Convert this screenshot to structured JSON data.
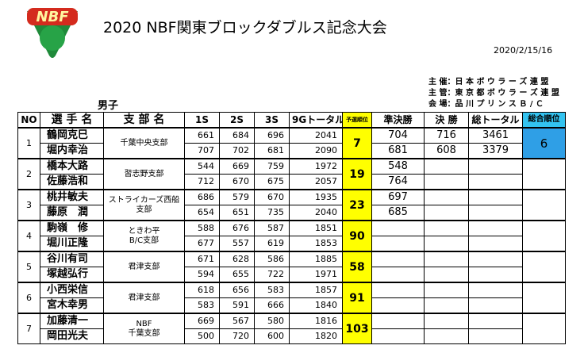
{
  "header": {
    "logo": "NBF",
    "title": "2020 NBF関東ブロックダブルス記念大会",
    "date": "2020/2/15/16",
    "info": [
      "主 催：日 本 ボ ウ ラ ー ズ 連 盟",
      "主 管：東 京 都 ボ ウ ラ ー ズ 連 盟",
      "会 場：品 川 プ リ ン ス Ｂ / Ｃ"
    ],
    "section": "男子"
  },
  "table": {
    "headers": [
      "NO",
      "選 手 名",
      "支 部 名",
      "1S",
      "2S",
      "3S",
      "9Gトータル",
      "予選順位",
      "準決勝",
      "決 勝",
      "総トータル",
      "総合順位"
    ],
    "teams": [
      {
        "no": 1,
        "branch": [
          "千葉中央支部"
        ],
        "qualify_rank": 7,
        "overall_rank": 6,
        "players": [
          {
            "name": "鶴岡克巳",
            "s1": 661,
            "s2": 684,
            "s3": 696,
            "total": 2041,
            "semi": 704,
            "final": 716,
            "grand_total": 3461
          },
          {
            "name": "堀内幸治",
            "s1": 707,
            "s2": 702,
            "s3": 681,
            "total": 2090,
            "semi": 681,
            "final": 608,
            "grand_total": 3379
          }
        ]
      },
      {
        "no": 2,
        "branch": [
          "習志野支部"
        ],
        "qualify_rank": 19,
        "players": [
          {
            "name": "橋本大路",
            "s1": 544,
            "s2": 669,
            "s3": 759,
            "total": 1972,
            "semi": 548
          },
          {
            "name": "佐藤浩和",
            "s1": 712,
            "s2": 670,
            "s3": 675,
            "total": 2057,
            "semi": 764
          }
        ]
      },
      {
        "no": 3,
        "branch": [
          "ストライカーズ西船",
          "支部"
        ],
        "qualify_rank": 23,
        "players": [
          {
            "name": "桃井敏夫",
            "s1": 686,
            "s2": 579,
            "s3": 670,
            "total": 1935,
            "semi": 697
          },
          {
            "name": "藤原　潤",
            "s1": 654,
            "s2": 651,
            "s3": 735,
            "total": 2040,
            "semi": 685
          }
        ]
      },
      {
        "no": 4,
        "branch": [
          "ときわ平",
          "B/C支部"
        ],
        "qualify_rank": 90,
        "players": [
          {
            "name": "駒嶺　修",
            "s1": 588,
            "s2": 676,
            "s3": 587,
            "total": 1851
          },
          {
            "name": "堀川正隆",
            "s1": 677,
            "s2": 557,
            "s3": 619,
            "total": 1853
          }
        ]
      },
      {
        "no": 5,
        "branch": [
          "君津支部"
        ],
        "qualify_rank": 58,
        "players": [
          {
            "name": "谷川有司",
            "s1": 671,
            "s2": 628,
            "s3": 586,
            "total": 1885
          },
          {
            "name": "塚越弘行",
            "s1": 594,
            "s2": 655,
            "s3": 722,
            "total": 1971
          }
        ]
      },
      {
        "no": 6,
        "branch": [
          "君津支部"
        ],
        "qualify_rank": 91,
        "players": [
          {
            "name": "小西栄信",
            "s1": 618,
            "s2": 656,
            "s3": 583,
            "total": 1857
          },
          {
            "name": "宮木幸男",
            "s1": 583,
            "s2": 591,
            "s3": 666,
            "total": 1840
          }
        ]
      },
      {
        "no": 7,
        "branch": [
          "NBF",
          "千葉支部"
        ],
        "qualify_rank": 103,
        "players": [
          {
            "name": "加藤清一",
            "s1": 669,
            "s2": 567,
            "s3": 580,
            "total": 1816
          },
          {
            "name": "岡田光夫",
            "s1": 500,
            "s2": 720,
            "s3": 600,
            "total": 1820
          }
        ]
      }
    ]
  }
}
